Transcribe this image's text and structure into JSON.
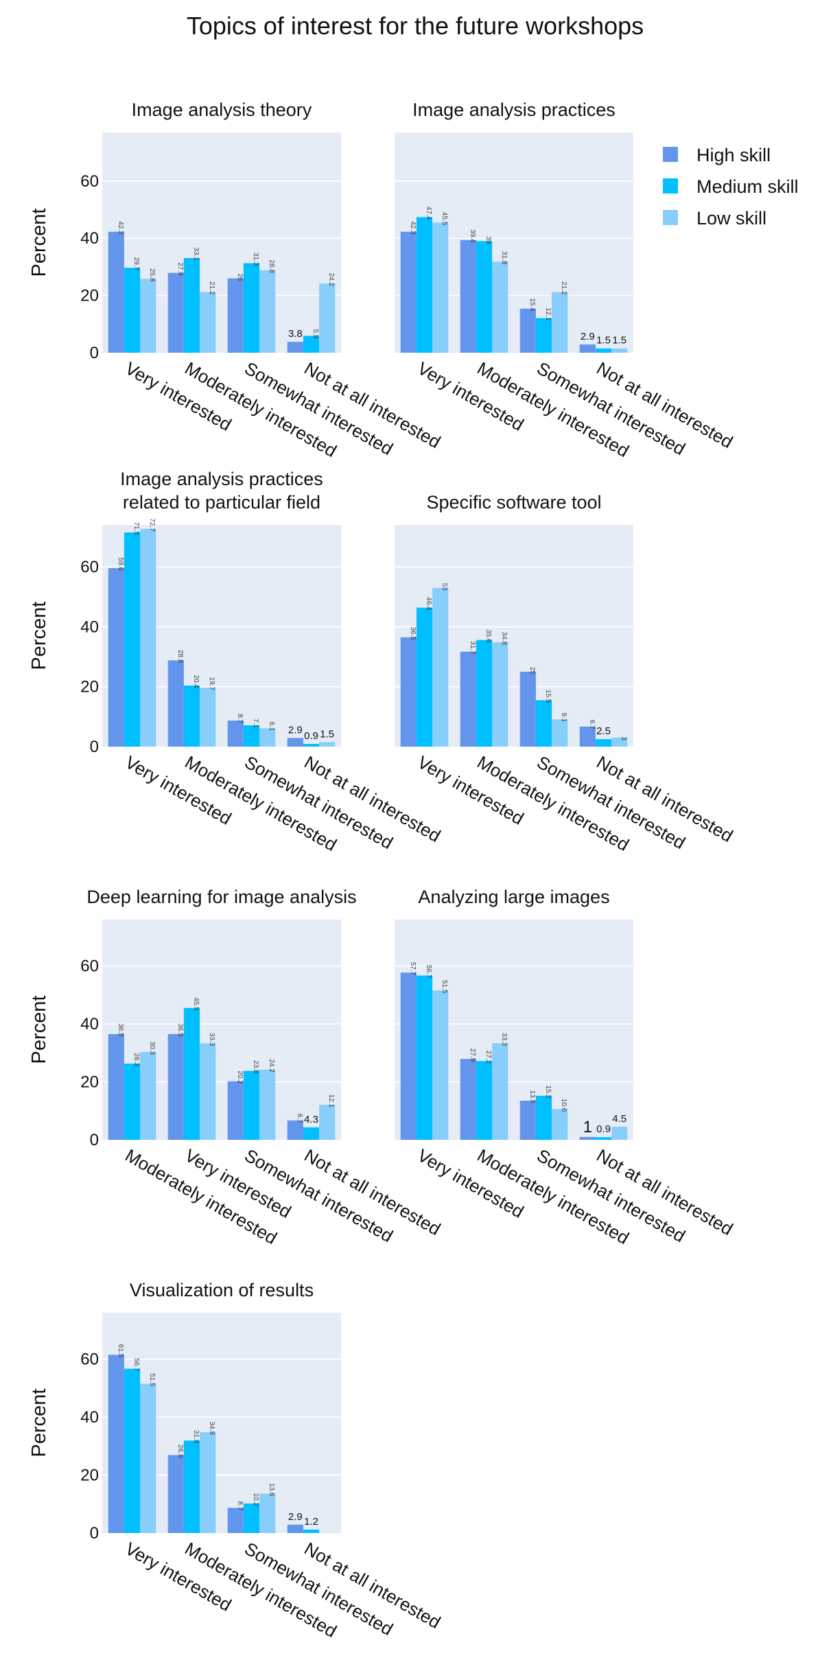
{
  "title": "Topics of interest for the future workshops",
  "legend": {
    "items": [
      {
        "name": "High skill",
        "color": "#6495ed"
      },
      {
        "name": "Medium skill",
        "color": "#00bfff"
      },
      {
        "name": "Low skill",
        "color": "#87cefa"
      }
    ],
    "placement": "top-right"
  },
  "chart_data": [
    {
      "type": "bar",
      "title": "Image analysis theory",
      "ylabel": "Percent",
      "ylim": [
        0,
        77
      ],
      "yticks": [
        0,
        20,
        40,
        60
      ],
      "categories": [
        "Very interested",
        "Moderately interested",
        "Somewhat interested",
        "Not at all interested"
      ],
      "series": [
        {
          "name": "High skill",
          "values": [
            42.3,
            27.9,
            26,
            3.8
          ]
        },
        {
          "name": "Medium skill",
          "values": [
            29.7,
            33.1,
            31.3,
            5.9
          ]
        },
        {
          "name": "Low skill",
          "values": [
            25.8,
            21.2,
            28.8,
            24.2
          ]
        }
      ]
    },
    {
      "type": "bar",
      "title": "Image analysis practices",
      "ylabel": "",
      "ylim": [
        0,
        77
      ],
      "yticks": [
        0,
        20,
        40,
        60
      ],
      "categories": [
        "Very interested",
        "Moderately interested",
        "Somewhat interested",
        "Not at all interested"
      ],
      "series": [
        {
          "name": "High skill",
          "values": [
            42.3,
            39.4,
            15.4,
            2.9
          ]
        },
        {
          "name": "Medium skill",
          "values": [
            47.4,
            39,
            12.1,
            1.5
          ]
        },
        {
          "name": "Low skill",
          "values": [
            45.5,
            31.8,
            21.2,
            1.5
          ]
        }
      ]
    },
    {
      "type": "bar",
      "title": "Image analysis practices\nrelated to particular field",
      "ylabel": "Percent",
      "ylim": [
        0,
        74
      ],
      "yticks": [
        0,
        20,
        40,
        60
      ],
      "categories": [
        "Very interested",
        "Moderately interested",
        "Somewhat interested",
        "Not at all interested"
      ],
      "series": [
        {
          "name": "High skill",
          "values": [
            59.6,
            28.8,
            8.7,
            2.9
          ]
        },
        {
          "name": "Medium skill",
          "values": [
            71.5,
            20.4,
            7.1,
            0.9
          ]
        },
        {
          "name": "Low skill",
          "values": [
            72.7,
            19.7,
            6.1,
            1.5
          ]
        }
      ]
    },
    {
      "type": "bar",
      "title": "Specific software tool",
      "ylabel": "",
      "ylim": [
        0,
        74
      ],
      "yticks": [
        0,
        20,
        40,
        60
      ],
      "categories": [
        "Very interested",
        "Moderately interested",
        "Somewhat interested",
        "Not at all interested"
      ],
      "series": [
        {
          "name": "High skill",
          "values": [
            36.5,
            31.7,
            25,
            6.7
          ]
        },
        {
          "name": "Medium skill",
          "values": [
            46.4,
            35.6,
            15.5,
            2.5
          ]
        },
        {
          "name": "Low skill",
          "values": [
            53,
            34.8,
            9.1,
            3
          ]
        }
      ]
    },
    {
      "type": "bar",
      "title": "Deep learning for image analysis",
      "ylabel": "Percent",
      "ylim": [
        0,
        76
      ],
      "yticks": [
        0,
        20,
        40,
        60
      ],
      "categories": [
        "Moderately interested",
        "Very interested",
        "Somewhat interested",
        "Not at all interested"
      ],
      "series": [
        {
          "name": "High skill",
          "values": [
            36.5,
            36.5,
            20.2,
            6.7
          ]
        },
        {
          "name": "Medium skill",
          "values": [
            26.3,
            45.5,
            23.8,
            4.3
          ]
        },
        {
          "name": "Low skill",
          "values": [
            30.3,
            33.3,
            24.2,
            12.1
          ]
        }
      ]
    },
    {
      "type": "bar",
      "title": "Analyzing large images",
      "ylabel": "",
      "ylim": [
        0,
        76
      ],
      "yticks": [
        0,
        20,
        40,
        60
      ],
      "categories": [
        "Very interested",
        "Moderately interested",
        "Somewhat interested",
        "Not at all interested"
      ],
      "series": [
        {
          "name": "High skill",
          "values": [
            57.7,
            27.9,
            13.5,
            1
          ]
        },
        {
          "name": "Medium skill",
          "values": [
            56.7,
            27.2,
            15.2,
            0.9
          ]
        },
        {
          "name": "Low skill",
          "values": [
            51.5,
            33.3,
            10.6,
            4.5
          ]
        }
      ]
    },
    {
      "type": "bar",
      "title": "Visualization of results",
      "ylabel": "Percent",
      "ylim": [
        0,
        76
      ],
      "yticks": [
        0,
        20,
        40,
        60
      ],
      "categories": [
        "Very interested",
        "Moderately interested",
        "Somewhat interested",
        "Not at all interested"
      ],
      "series": [
        {
          "name": "High skill",
          "values": [
            61.5,
            26.9,
            8.7,
            2.9
          ]
        },
        {
          "name": "Medium skill",
          "values": [
            56.7,
            31.9,
            10.2,
            1.2
          ]
        },
        {
          "name": "Low skill",
          "values": [
            51.5,
            34.8,
            13.6,
            0
          ]
        }
      ]
    }
  ]
}
